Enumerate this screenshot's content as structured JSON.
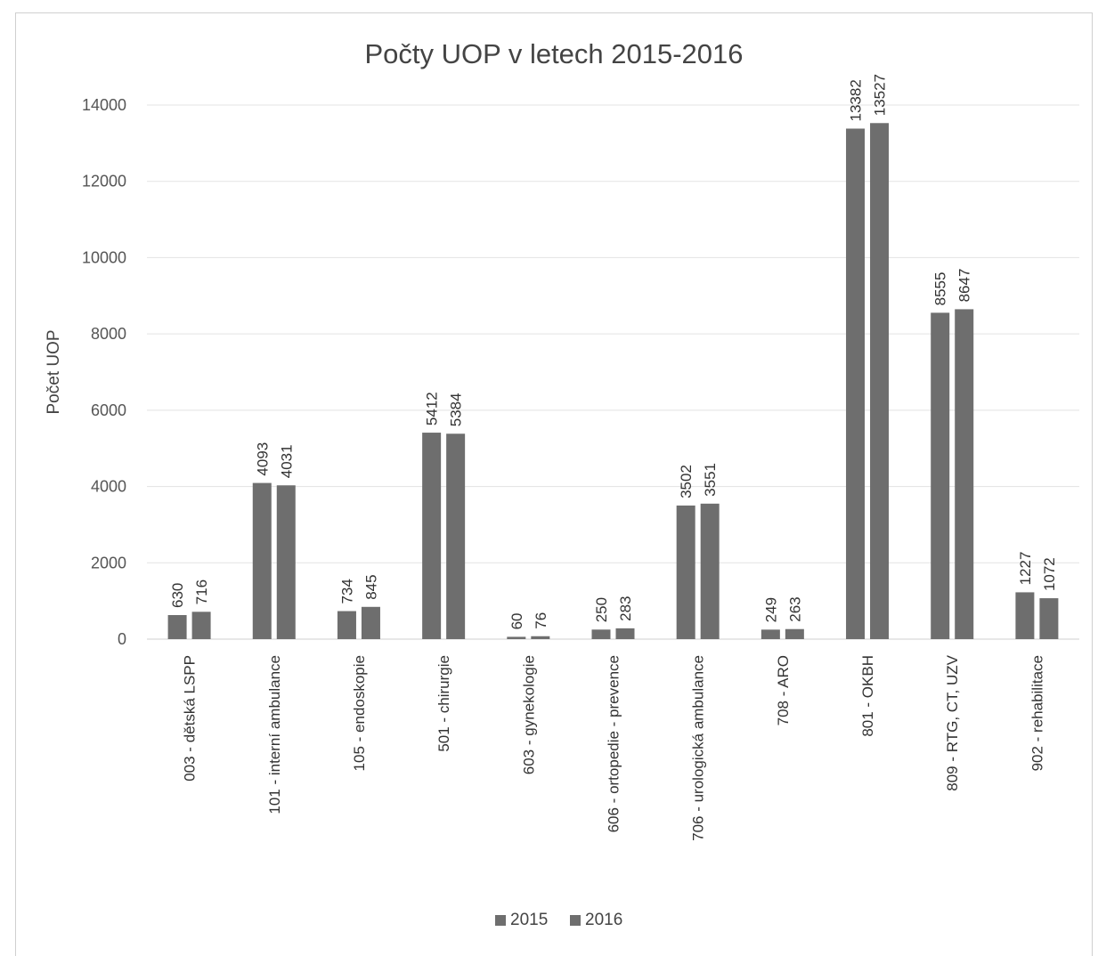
{
  "chart_data": {
    "type": "bar",
    "title": "Počty UOP v letech 2015-2016",
    "xlabel": "",
    "ylabel": "Počet UOP",
    "ylim": [
      0,
      14000
    ],
    "yticks": [
      0,
      2000,
      4000,
      6000,
      8000,
      10000,
      12000,
      14000
    ],
    "grid": true,
    "legend_position": "bottom",
    "categories": [
      "003 - dětská LSPP",
      "101 - interní ambulance",
      "105 - endoskopie",
      "501 - chirurgie",
      "603 - gynekologie",
      "606 - ortopedie - prevence",
      "706 - urologická ambulance",
      "708 - ARO",
      "801 - OKBH",
      "809 - RTG, CT, UZV",
      "902 - rehabilitace"
    ],
    "series": [
      {
        "name": "2015",
        "color": "#6e6e6e",
        "values": [
          630,
          4093,
          734,
          5412,
          60,
          250,
          3502,
          249,
          13382,
          8555,
          1227
        ]
      },
      {
        "name": "2016",
        "color": "#6e6e6e",
        "values": [
          716,
          4031,
          845,
          5384,
          76,
          283,
          3551,
          263,
          13527,
          8647,
          1072
        ]
      }
    ]
  }
}
